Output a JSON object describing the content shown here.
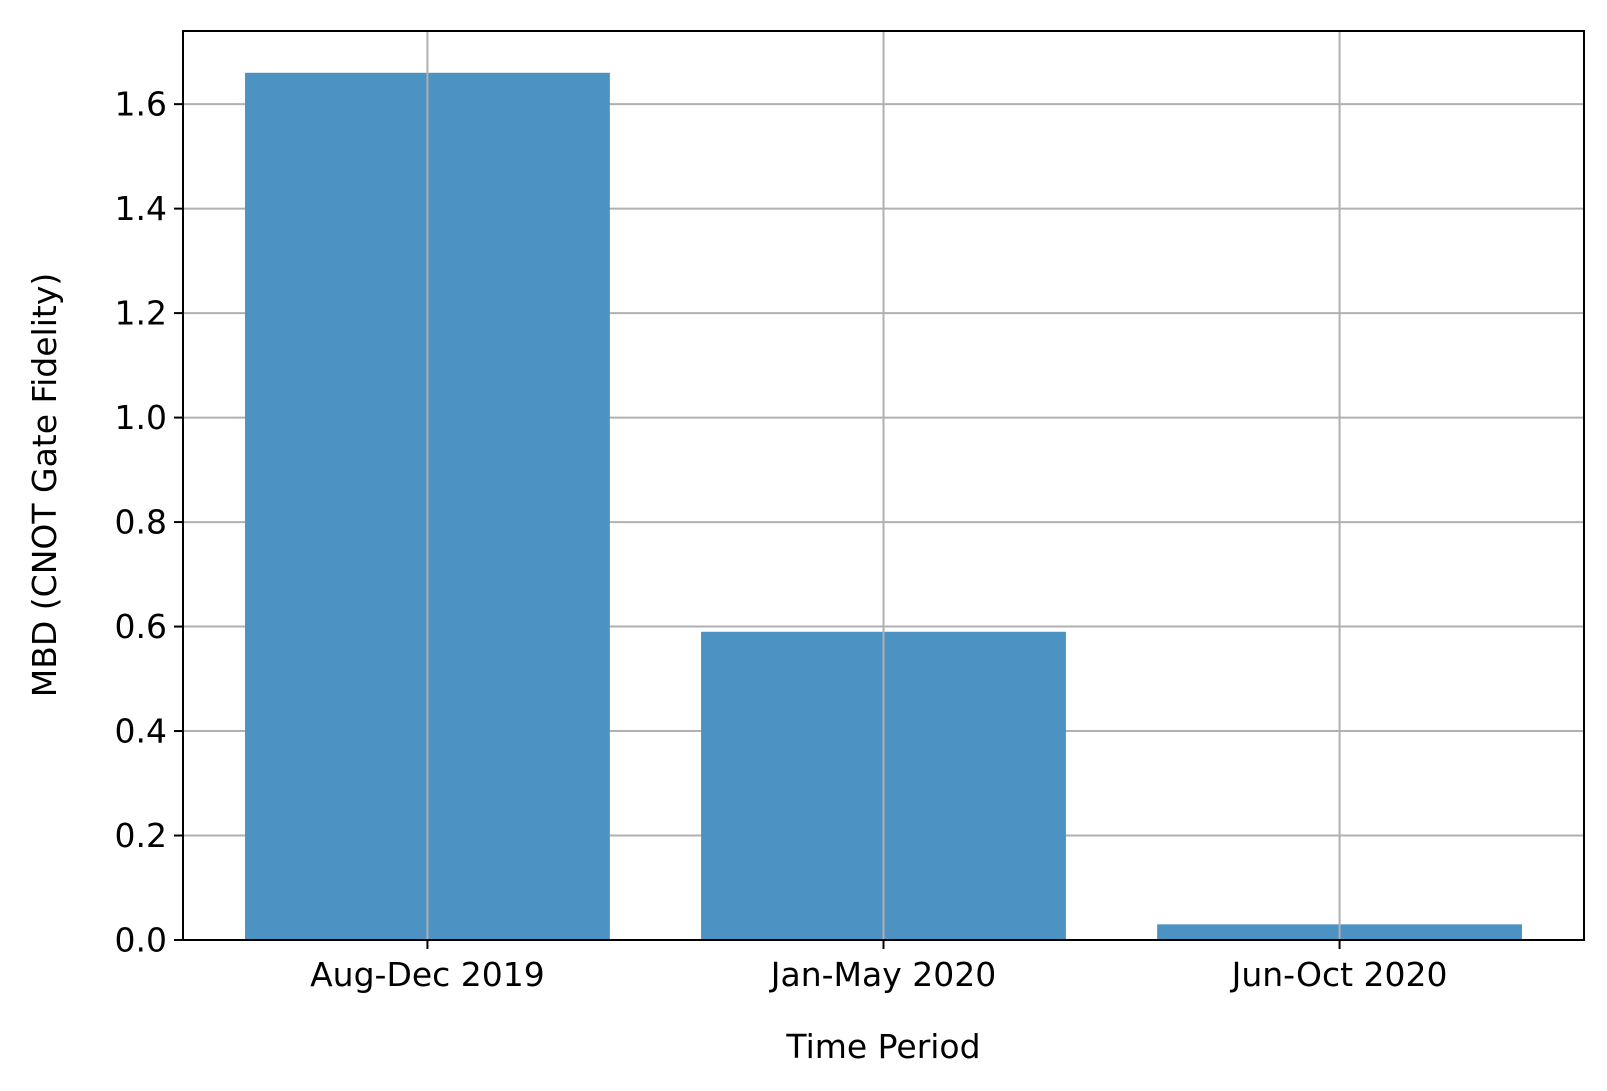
{
  "chart_data": {
    "type": "bar",
    "categories": [
      "Aug-Dec 2019",
      "Jan-May 2020",
      "Jun-Oct 2020"
    ],
    "values": [
      1.66,
      0.59,
      0.03
    ],
    "xlabel": "Time Period",
    "ylabel": "MBD (CNOT Gate Fidelity)",
    "ylim": [
      0,
      1.74
    ],
    "yticks": [
      "0.0",
      "0.2",
      "0.4",
      "0.6",
      "0.8",
      "1.0",
      "1.2",
      "1.4",
      "1.6"
    ],
    "grid": true,
    "legend": "none",
    "bar_color": "#4c92c3",
    "grid_color": "#b0b0b0"
  }
}
